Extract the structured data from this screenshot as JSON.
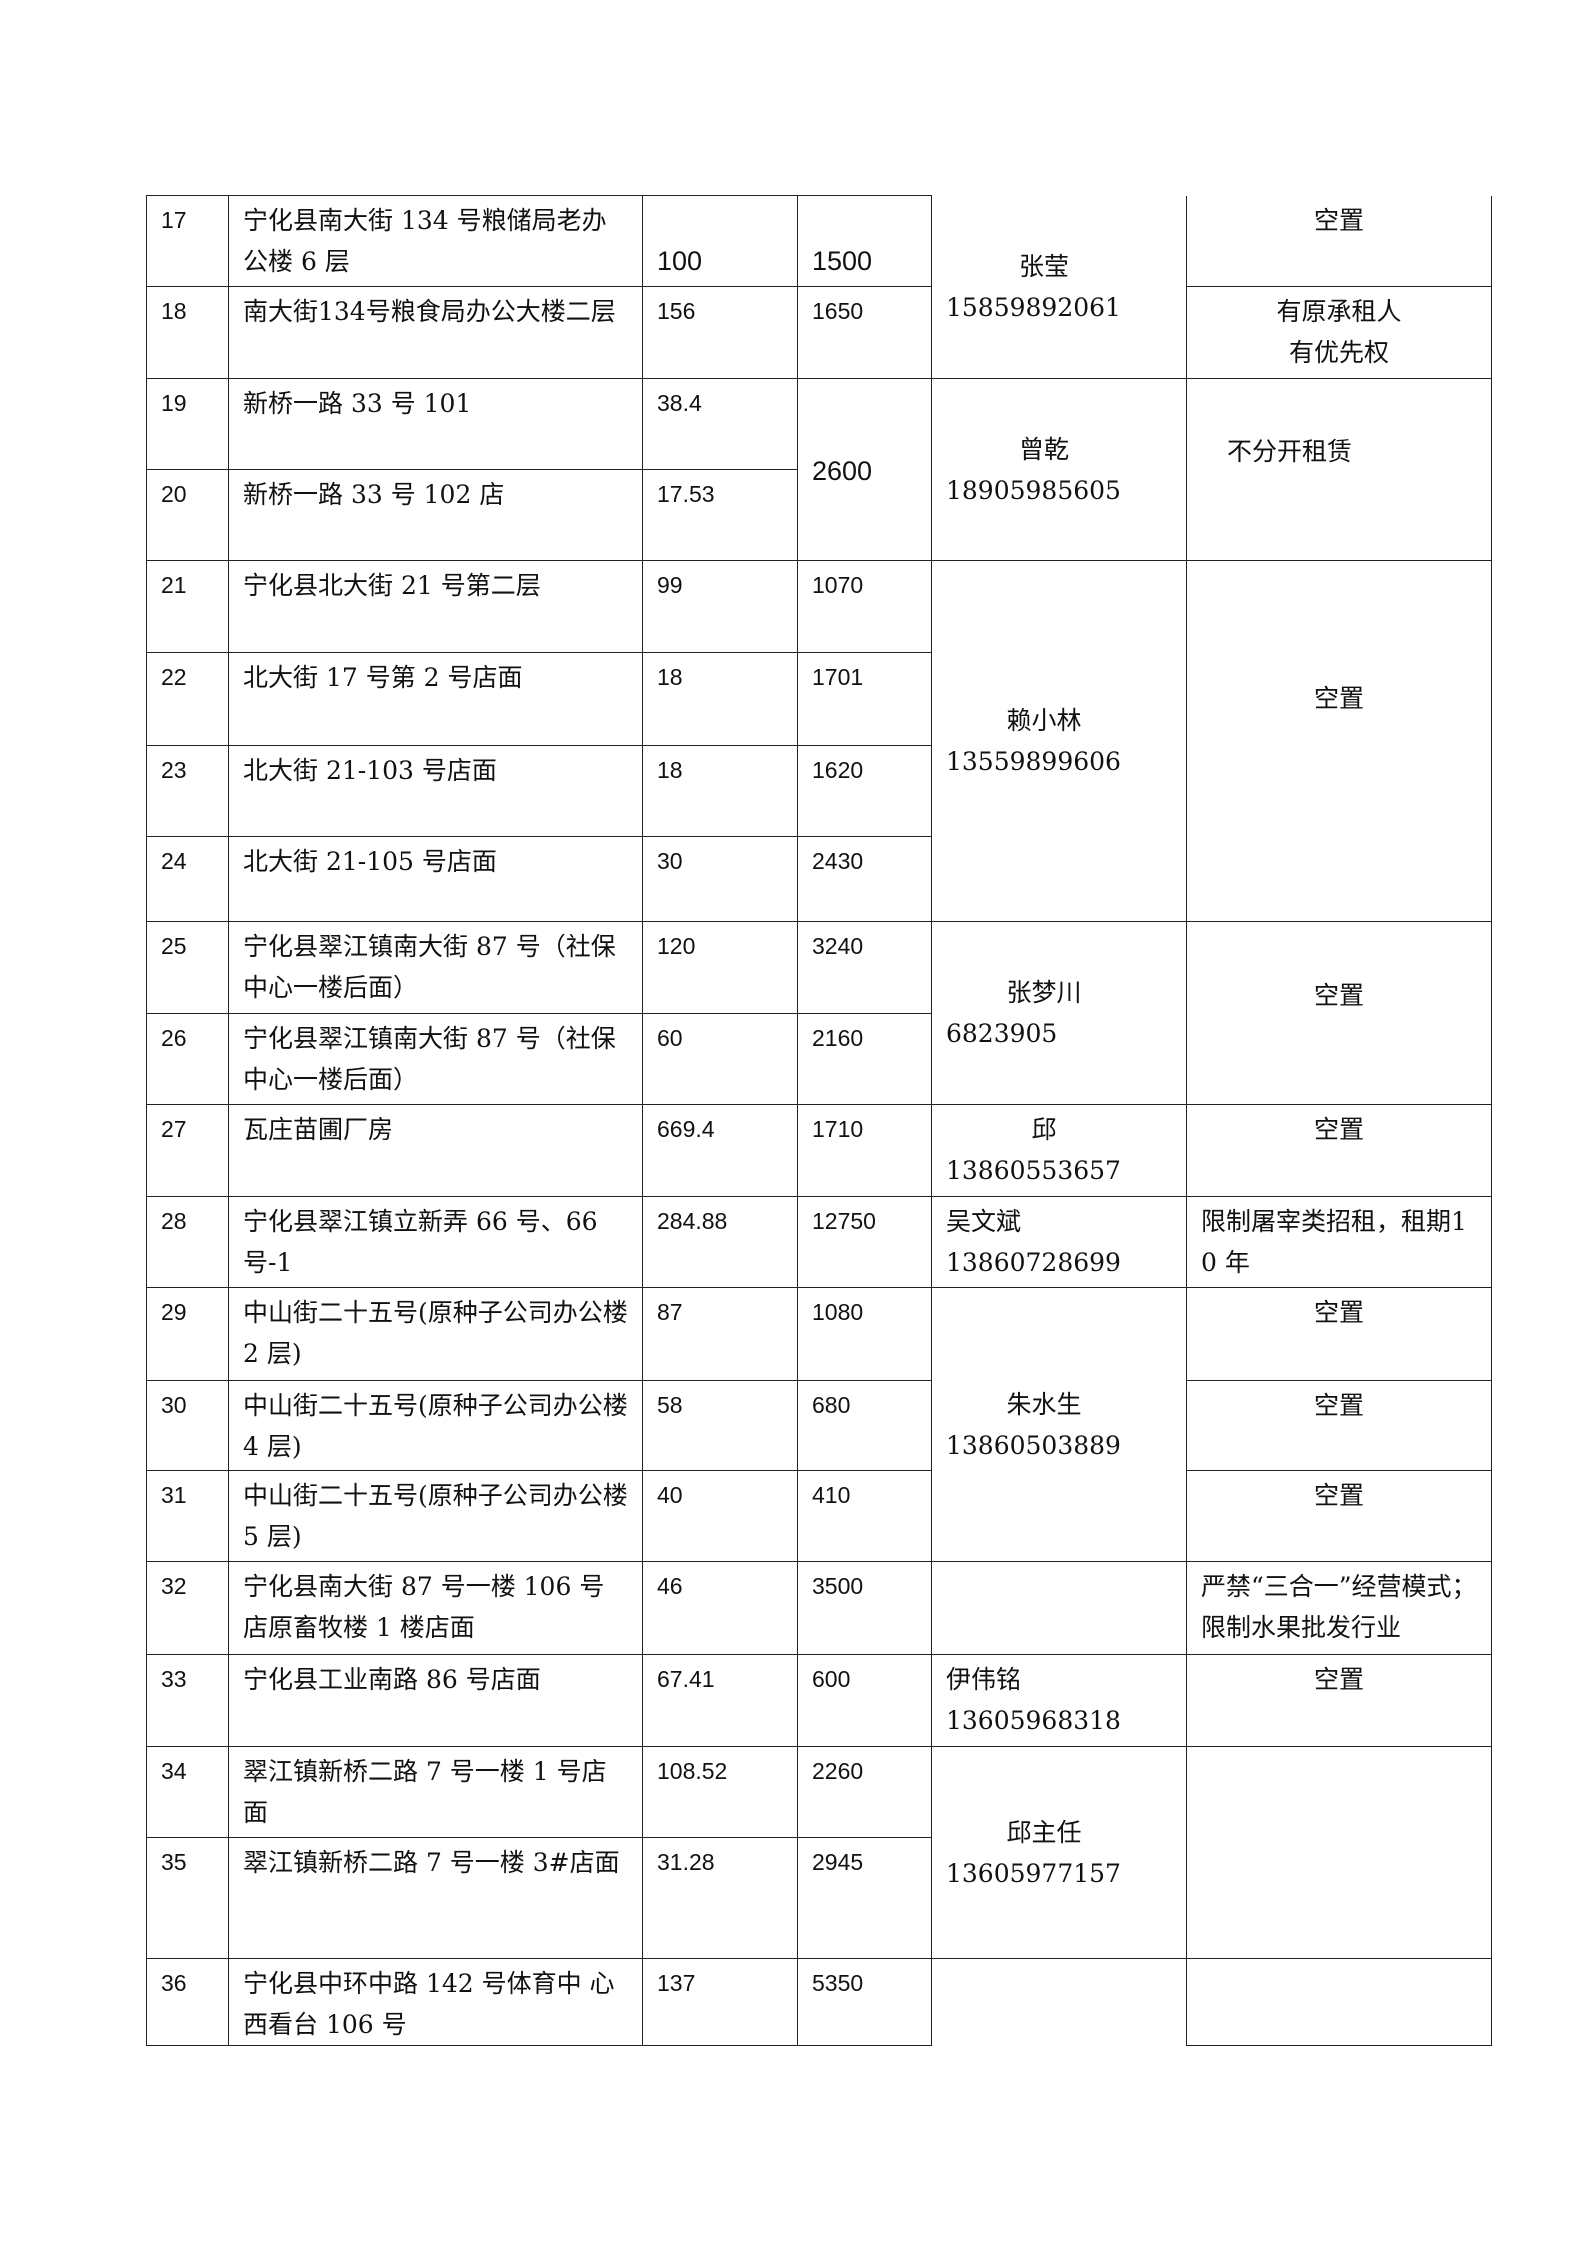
{
  "rows": [
    {
      "no": "17",
      "address": "宁化县南大街 134 号粮储局老办公楼 6 层",
      "area": "100",
      "rent": "1500",
      "rent_span": 1,
      "contact": {
        "name": "张莹",
        "phone": "15859892061",
        "span": 2
      },
      "note": {
        "text": "空置",
        "span": 1
      },
      "big": true
    },
    {
      "no": "18",
      "address": "南大街134号粮食局办公大楼二层",
      "area": "156",
      "rent": "1650",
      "rent_span": 1,
      "note": {
        "text": "有原承租人\n有优先权",
        "span": 1
      }
    },
    {
      "no": "19",
      "address": "新桥一路 33 号 101",
      "area": "38.4",
      "rent": "2600",
      "rent_span": 2,
      "contact": {
        "name": "曾乾",
        "phone": "18905985605",
        "span": 2
      },
      "note": {
        "text": "不分开租赁",
        "span": 2
      }
    },
    {
      "no": "20",
      "address": "新桥一路 33 号 102 店",
      "area": "17.53"
    },
    {
      "no": "21",
      "address": "宁化县北大街 21 号第二层",
      "area": "99",
      "rent": "1070",
      "rent_span": 1,
      "contact": {
        "name": "赖小林",
        "phone": "13559899606",
        "span": 4
      },
      "note": {
        "text": "空置",
        "span": 4
      }
    },
    {
      "no": "22",
      "address": "北大街 17 号第 2 号店面",
      "area": "18",
      "rent": "1701",
      "rent_span": 1
    },
    {
      "no": "23",
      "address": "北大街 21-103 号店面",
      "area": "18",
      "rent": "1620",
      "rent_span": 1
    },
    {
      "no": "24",
      "address": "北大街 21-105 号店面",
      "area": "30",
      "rent": "2430",
      "rent_span": 1
    },
    {
      "no": "25",
      "address": "宁化县翠江镇南大街 87 号（社保中心一楼后面）",
      "area": "120",
      "rent": "3240",
      "rent_span": 1,
      "contact": {
        "name": "张梦川",
        "phone": "6823905",
        "span": 2
      },
      "note": {
        "text": "空置",
        "span": 2
      }
    },
    {
      "no": "26",
      "address": "宁化县翠江镇南大街 87 号（社保中心一楼后面）",
      "area": "60",
      "rent": "2160",
      "rent_span": 1
    },
    {
      "no": "27",
      "address": "瓦庄苗圃厂房",
      "area": "669.4",
      "rent": "1710",
      "rent_span": 1,
      "contact": {
        "name": "邱",
        "phone": "13860553657",
        "span": 1,
        "top": true
      },
      "note": {
        "text": "空置",
        "span": 1
      }
    },
    {
      "no": "28",
      "address": "宁化县翠江镇立新弄 66 号、66 号-1",
      "area": "284.88",
      "rent": "12750",
      "rent_span": 1,
      "contact": {
        "name": "吴文斌",
        "phone": "13860728699",
        "span": 1,
        "top": true,
        "left": true
      },
      "note": {
        "text": "限制屠宰类招租，租期10 年",
        "span": 1,
        "left": true
      }
    },
    {
      "no": "29",
      "address": "中山街二十五号(原种子公司办公楼 2 层)",
      "area": "87",
      "rent": "1080",
      "rent_span": 1,
      "contact": {
        "name": "朱水生",
        "phone": "13860503889",
        "span": 3
      },
      "note": {
        "text": "空置",
        "span": 1
      }
    },
    {
      "no": "30",
      "address": "中山街二十五号(原种子公司办公楼 4 层)",
      "area": "58",
      "rent": "680",
      "rent_span": 1,
      "note": {
        "text": "空置",
        "span": 1
      }
    },
    {
      "no": "31",
      "address": "中山街二十五号(原种子公司办公楼 5 层)",
      "area": "40",
      "rent": "410",
      "rent_span": 1,
      "note": {
        "text": "空置",
        "span": 1
      }
    },
    {
      "no": "32",
      "address": "宁化县南大街 87 号一楼 106 号店原畜牧楼 1 楼店面",
      "area": "46",
      "rent": "3500",
      "rent_span": 1,
      "contact": {
        "name": "",
        "phone": "",
        "span": 1
      },
      "note": {
        "text": "严禁“三合一”经营模式；限制水果批发行业",
        "span": 1,
        "left": true
      }
    },
    {
      "no": "33",
      "address": "宁化县工业南路 86 号店面",
      "area": "67.41",
      "rent": "600",
      "rent_span": 1,
      "contact": {
        "name": "伊伟铭",
        "phone": "13605968318",
        "span": 1,
        "top": true,
        "left": true
      },
      "note": {
        "text": "空置",
        "span": 1
      }
    },
    {
      "no": "34",
      "address": "翠江镇新桥二路 7 号一楼 1 号店面",
      "area": "108.52",
      "rent": "2260",
      "rent_span": 1,
      "contact": {
        "name": "邱主任",
        "phone": "13605977157",
        "span": 2
      },
      "note": {
        "text": "",
        "span": 2
      }
    },
    {
      "no": "35",
      "address": "翠江镇新桥二路 7 号一楼 3#店面",
      "area": "31.28",
      "rent": "2945",
      "rent_span": 1
    },
    {
      "no": "36",
      "address": "宁化县中环中路 142 号体育中 心西看台 106 号",
      "area": "137",
      "rent": "5350",
      "rent_span": 1,
      "contact": {
        "name": "",
        "phone": "",
        "span": 1,
        "last": true
      },
      "note": {
        "text": "",
        "span": 1
      }
    }
  ]
}
